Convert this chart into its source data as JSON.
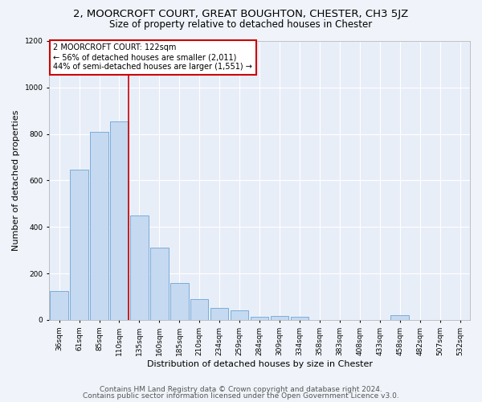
{
  "title": "2, MOORCROFT COURT, GREAT BOUGHTON, CHESTER, CH3 5JZ",
  "subtitle": "Size of property relative to detached houses in Chester",
  "xlabel": "Distribution of detached houses by size in Chester",
  "ylabel": "Number of detached properties",
  "categories": [
    "36sqm",
    "61sqm",
    "85sqm",
    "110sqm",
    "135sqm",
    "160sqm",
    "185sqm",
    "210sqm",
    "234sqm",
    "259sqm",
    "284sqm",
    "309sqm",
    "334sqm",
    "358sqm",
    "383sqm",
    "408sqm",
    "433sqm",
    "458sqm",
    "482sqm",
    "507sqm",
    "532sqm"
  ],
  "values": [
    125,
    645,
    810,
    855,
    450,
    310,
    160,
    88,
    50,
    40,
    15,
    18,
    12,
    0,
    0,
    0,
    0,
    22,
    0,
    0,
    0
  ],
  "bar_color": "#c5d9f0",
  "bar_edge_color": "#7aadda",
  "vline_x_index": 3,
  "vline_color": "#cc0000",
  "annotation_text": "2 MOORCROFT COURT: 122sqm\n← 56% of detached houses are smaller (2,011)\n44% of semi-detached houses are larger (1,551) →",
  "annotation_box_color": "#ffffff",
  "annotation_box_edge_color": "#cc0000",
  "ylim": [
    0,
    1200
  ],
  "yticks": [
    0,
    200,
    400,
    600,
    800,
    1000,
    1200
  ],
  "bg_color": "#f0f4fa",
  "plot_bg_color": "#e8eef8",
  "grid_color": "#ffffff",
  "footer_line1": "Contains HM Land Registry data © Crown copyright and database right 2024.",
  "footer_line2": "Contains public sector information licensed under the Open Government Licence v3.0.",
  "title_fontsize": 9.5,
  "subtitle_fontsize": 8.5,
  "xlabel_fontsize": 8,
  "ylabel_fontsize": 8,
  "tick_fontsize": 6.5,
  "annotation_fontsize": 7,
  "footer_fontsize": 6.5
}
